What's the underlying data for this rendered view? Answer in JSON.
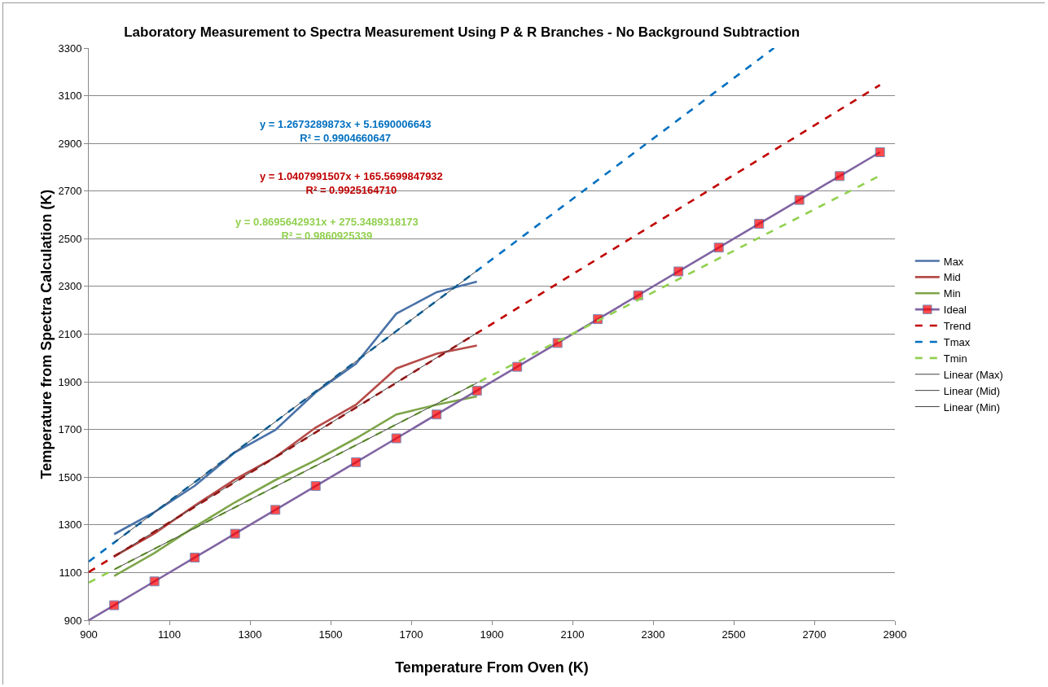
{
  "chart_data": {
    "type": "line",
    "title": "Laboratory Measurement to Spectra Measurement Using P & R Branches - No Background Subtraction",
    "xlabel": "Temperature From Oven (K)",
    "ylabel": "Temperature from Spectra Calculation (K)",
    "xlim": [
      900,
      2900
    ],
    "xticks": [
      900,
      1100,
      1300,
      1500,
      1700,
      1900,
      2100,
      2300,
      2500,
      2700,
      2900
    ],
    "ylim": [
      900,
      3300
    ],
    "yticks": [
      900,
      1100,
      1300,
      1500,
      1700,
      1900,
      2100,
      2300,
      2500,
      2700,
      2900,
      3100,
      3300
    ],
    "grid": "y",
    "legend": "right",
    "marker": "none",
    "line_style": "solid",
    "annotations": [
      "y = 1.2673289873x + 5.1690006643\nR² = 0.9904660647",
      "y = 1.0407991507x + 165.5699847932\nR² = 0.9925164710",
      "y = 0.8695642931x + 275.3489318173\nR² = 0.9860925339"
    ],
    "series": [
      {
        "name": "Max",
        "color": "#4a72a8",
        "x": [
          963,
          1063,
          1163,
          1263,
          1363,
          1463,
          1563,
          1663,
          1763,
          1863
        ],
        "values": [
          1261,
          1354,
          1464,
          1605,
          1698,
          1856,
          1976,
          2186,
          2276,
          2320
        ]
      },
      {
        "name": "Mid",
        "color": "#b54b48",
        "x": [
          963,
          1063,
          1163,
          1263,
          1363,
          1463,
          1563,
          1663,
          1763,
          1863
        ],
        "values": [
          1168,
          1264,
          1381,
          1491,
          1584,
          1708,
          1804,
          1956,
          2018,
          2052
        ]
      },
      {
        "name": "Min",
        "color": "#7ea54a",
        "x": [
          963,
          1063,
          1163,
          1263,
          1363,
          1463,
          1563,
          1663,
          1763,
          1863
        ],
        "values": [
          1086,
          1182,
          1292,
          1395,
          1488,
          1571,
          1663,
          1763,
          1804,
          1839
        ]
      },
      {
        "name": "Ideal",
        "color": "#8064a2",
        "marker": "square",
        "x": [
          900,
          963,
          1063,
          1163,
          1263,
          1363,
          1463,
          1563,
          1663,
          1763,
          1863,
          1963,
          2063,
          2163,
          2263,
          2363,
          2463,
          2563,
          2663,
          2763,
          2863
        ],
        "values": [
          900,
          963,
          1063,
          1163,
          1263,
          1363,
          1463,
          1563,
          1663,
          1763,
          1863,
          1963,
          2063,
          2163,
          2263,
          2363,
          2463,
          2563,
          2663,
          2763,
          2863
        ],
        "colors": [
          "#ff0000",
          "#ff0000",
          "#ff0000",
          "#ff0000",
          "#ff0000",
          "#ff0000",
          "#ff0000",
          "#ff0000",
          "#ff0000",
          "#ff0000",
          "#ff0000",
          "#ff0000",
          "#ff0000",
          "#ff0000",
          "#ff0000",
          "#ff0000",
          "#ff0000",
          "#ff0000",
          "#ff0000",
          "#ff0000",
          "#ff0000"
        ]
      },
      {
        "name": "Trend",
        "color": "#c00000",
        "line_style": "dashed",
        "x": [
          900,
          2863
        ],
        "values": [
          1102,
          3145
        ]
      },
      {
        "name": "Tmax",
        "color": "#0070c0",
        "line_style": "dashed",
        "x": [
          900,
          2600
        ],
        "values": [
          1146,
          3300
        ]
      },
      {
        "name": "Tmin",
        "color": "#92d050",
        "line_style": "dashed",
        "x": [
          900,
          2863
        ],
        "values": [
          1058,
          2765
        ]
      },
      {
        "name": "Linear (Max)",
        "color": "#404040",
        "x": [
          963,
          1863
        ],
        "values": [
          1226,
          2366
        ]
      },
      {
        "name": "Linear (Mid)",
        "color": "#404040",
        "x": [
          963,
          1863
        ],
        "values": [
          1168,
          2105
        ]
      },
      {
        "name": "Linear (Min)",
        "color": "#404040",
        "x": [
          963,
          1863
        ],
        "values": [
          1113,
          1895
        ]
      }
    ]
  }
}
